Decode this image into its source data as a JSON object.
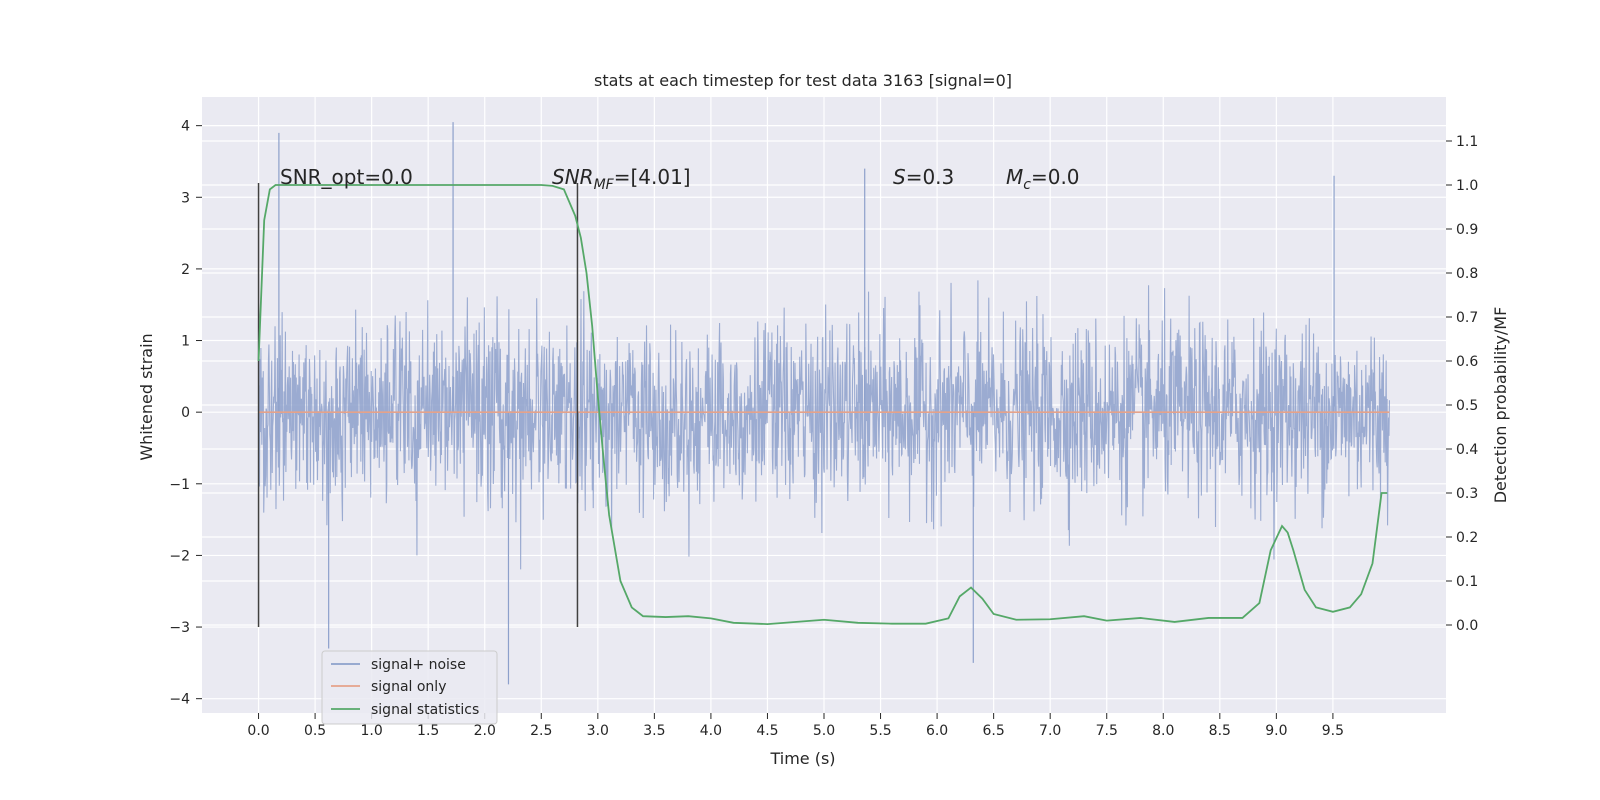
{
  "chart_data": {
    "type": "line",
    "title": "stats at each timestep for test data 3163 [signal=0]",
    "xlabel": "Time (s)",
    "ylabel": "Whitened strain",
    "ylabel_right": "Detection probability/MF",
    "xlim": [
      -0.5,
      10.5
    ],
    "ylim": [
      -4.2,
      4.4
    ],
    "ylim_right": [
      -0.2,
      1.2
    ],
    "xticks": [
      "0.0",
      "0.5",
      "1.0",
      "1.5",
      "2.0",
      "2.5",
      "3.0",
      "3.5",
      "4.0",
      "4.5",
      "5.0",
      "5.5",
      "6.0",
      "6.5",
      "7.0",
      "7.5",
      "8.0",
      "8.5",
      "9.0",
      "9.5"
    ],
    "yticks": [
      "4",
      "3",
      "2",
      "1",
      "0",
      "−1",
      "−2",
      "−3",
      "−4"
    ],
    "yticks_right": [
      "1.1",
      "1.0",
      "0.9",
      "0.8",
      "0.7",
      "0.6",
      "0.5",
      "0.4",
      "0.3",
      "0.2",
      "0.1",
      "0.0"
    ],
    "annotations": {
      "snr_opt": "SNR_opt=0.0",
      "snr_mf_main": "SNR",
      "snr_mf_sub": "MF",
      "snr_mf_value": "=[4.01]",
      "s_main": "S",
      "s_value": "=0.3",
      "mc_main": "M",
      "mc_sub": "c",
      "mc_value": "=0.0"
    },
    "vertical_markers": [
      0.0,
      2.82
    ],
    "legend": {
      "placement": "lower-left",
      "entries": [
        "signal+ noise",
        "signal only",
        "signal statistics"
      ]
    },
    "series": [
      {
        "name": "signal+ noise",
        "color": "#8da0cb",
        "x_range": [
          0.0,
          10.0
        ],
        "envelope_typical": [
          -1.5,
          1.5
        ],
        "peak_max": 4.05,
        "peak_min": -3.8
      },
      {
        "name": "signal only",
        "color": "#e5a28a",
        "x": [
          0.0,
          10.0
        ],
        "y": [
          0.0,
          0.0
        ]
      },
      {
        "name": "signal statistics",
        "color": "#55a868",
        "axis": "right",
        "x": [
          0.0,
          0.05,
          0.1,
          0.15,
          0.2,
          0.3,
          0.5,
          1.0,
          1.5,
          2.0,
          2.3,
          2.5,
          2.6,
          2.7,
          2.8,
          2.85,
          2.9,
          2.95,
          3.0,
          3.05,
          3.1,
          3.2,
          3.3,
          3.4,
          3.6,
          3.8,
          4.0,
          4.2,
          4.5,
          4.8,
          5.0,
          5.3,
          5.6,
          5.9,
          6.1,
          6.2,
          6.3,
          6.4,
          6.5,
          6.7,
          7.0,
          7.3,
          7.5,
          7.8,
          8.1,
          8.4,
          8.7,
          8.85,
          8.95,
          9.05,
          9.1,
          9.15,
          9.25,
          9.35,
          9.5,
          9.65,
          9.75,
          9.85,
          9.93,
          9.98
        ],
        "y": [
          0.6,
          0.92,
          0.99,
          1.0,
          1.0,
          1.0,
          1.0,
          1.0,
          1.0,
          1.0,
          1.0,
          1.0,
          0.998,
          0.99,
          0.93,
          0.88,
          0.8,
          0.68,
          0.52,
          0.38,
          0.25,
          0.1,
          0.04,
          0.02,
          0.018,
          0.02,
          0.015,
          0.005,
          0.002,
          0.008,
          0.012,
          0.005,
          0.003,
          0.003,
          0.015,
          0.065,
          0.085,
          0.06,
          0.025,
          0.012,
          0.013,
          0.02,
          0.01,
          0.016,
          0.007,
          0.016,
          0.016,
          0.05,
          0.17,
          0.225,
          0.21,
          0.17,
          0.08,
          0.04,
          0.03,
          0.04,
          0.07,
          0.14,
          0.3,
          0.3
        ]
      }
    ]
  },
  "colors": {
    "plot_background": "#eaeaf2",
    "grid": "#ffffff",
    "noise": "#8da0cb",
    "signal": "#e5a28a",
    "statistics": "#55a868",
    "marker_line": "#404040"
  }
}
